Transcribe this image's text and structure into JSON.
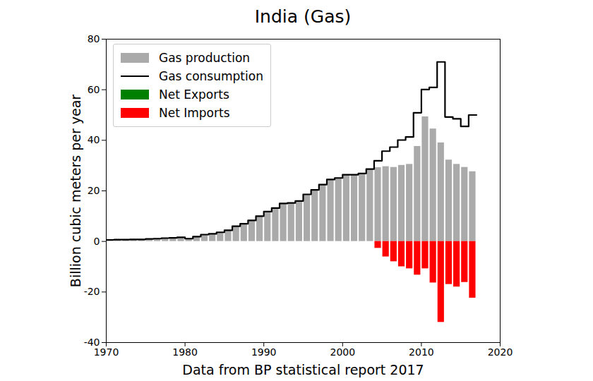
{
  "chart_data": {
    "type": "bar",
    "title": "India (Gas)",
    "x_label": "Data from BP statistical report 2017",
    "y_label": "Billion cubic meters per year",
    "x": [
      1970,
      1971,
      1972,
      1973,
      1974,
      1975,
      1976,
      1977,
      1978,
      1979,
      1980,
      1981,
      1982,
      1983,
      1984,
      1985,
      1986,
      1987,
      1988,
      1989,
      1990,
      1991,
      1992,
      1993,
      1994,
      1995,
      1996,
      1997,
      1998,
      1999,
      2000,
      2001,
      2002,
      2003,
      2004,
      2005,
      2006,
      2007,
      2008,
      2009,
      2010,
      2011,
      2012,
      2013,
      2014,
      2015,
      2016
    ],
    "series": [
      {
        "name": "Gas production",
        "color": "#aaaaaa",
        "type": "bar",
        "values": [
          0.6,
          0.7,
          0.7,
          0.8,
          0.8,
          1.0,
          1.1,
          1.3,
          1.4,
          1.6,
          1.1,
          1.9,
          2.7,
          3.0,
          3.6,
          4.4,
          6.0,
          7.0,
          8.3,
          10.0,
          11.8,
          13.2,
          15.0,
          15.2,
          16.0,
          18.6,
          20.4,
          22.5,
          24.5,
          25.1,
          26.4,
          26.4,
          26.9,
          28.6,
          29.2,
          29.6,
          29.3,
          30.1,
          30.5,
          37.6,
          49.3,
          44.5,
          39.0,
          32.2,
          30.5,
          29.3,
          27.6
        ]
      },
      {
        "name": "Gas consumption",
        "color": "#000000",
        "type": "line",
        "line_style": "step",
        "values": [
          0.6,
          0.7,
          0.7,
          0.8,
          0.8,
          1.0,
          1.1,
          1.3,
          1.4,
          1.6,
          1.1,
          1.9,
          2.7,
          3.0,
          3.6,
          4.4,
          6.0,
          7.0,
          8.3,
          10.0,
          11.8,
          13.2,
          15.0,
          15.2,
          16.0,
          18.6,
          20.4,
          22.5,
          24.5,
          25.1,
          26.4,
          26.4,
          26.9,
          28.6,
          31.9,
          35.7,
          37.3,
          40.1,
          41.3,
          50.9,
          60.1,
          60.9,
          71.0,
          49.2,
          48.5,
          45.5,
          50.0
        ]
      },
      {
        "name": "Net Exports",
        "color": "#008000",
        "type": "bar",
        "values": [
          0,
          0,
          0,
          0,
          0,
          0,
          0,
          0,
          0,
          0,
          0,
          0,
          0,
          0,
          0,
          0,
          0,
          0,
          0,
          0,
          0,
          0,
          0,
          0,
          0,
          0,
          0,
          0,
          0,
          0,
          0,
          0,
          0,
          0,
          0,
          0,
          0,
          0,
          0,
          0,
          0,
          0,
          0,
          0,
          0,
          0,
          0
        ]
      },
      {
        "name": "Net Imports",
        "color": "#ff0000",
        "type": "bar",
        "values": [
          0,
          0,
          0,
          0,
          0,
          0,
          0,
          0,
          0,
          0,
          0,
          0,
          0,
          0,
          0,
          0,
          0,
          0,
          0,
          0,
          0,
          0,
          0,
          0,
          0,
          0,
          0,
          0,
          0,
          0,
          0,
          0,
          0,
          0,
          -2.7,
          -6.1,
          -8.0,
          -10.0,
          -10.8,
          -13.3,
          -10.8,
          -16.4,
          -32.0,
          -17.0,
          -18.0,
          -16.2,
          -22.4
        ]
      }
    ],
    "xlim": [
      1970,
      2020
    ],
    "xticks": [
      1970,
      1980,
      1990,
      2000,
      2010,
      2020
    ],
    "ylim": [
      -40,
      80
    ],
    "yticks": [
      -40,
      -20,
      0,
      20,
      40,
      60,
      80
    ],
    "legend": "upper left",
    "grid": false
  }
}
